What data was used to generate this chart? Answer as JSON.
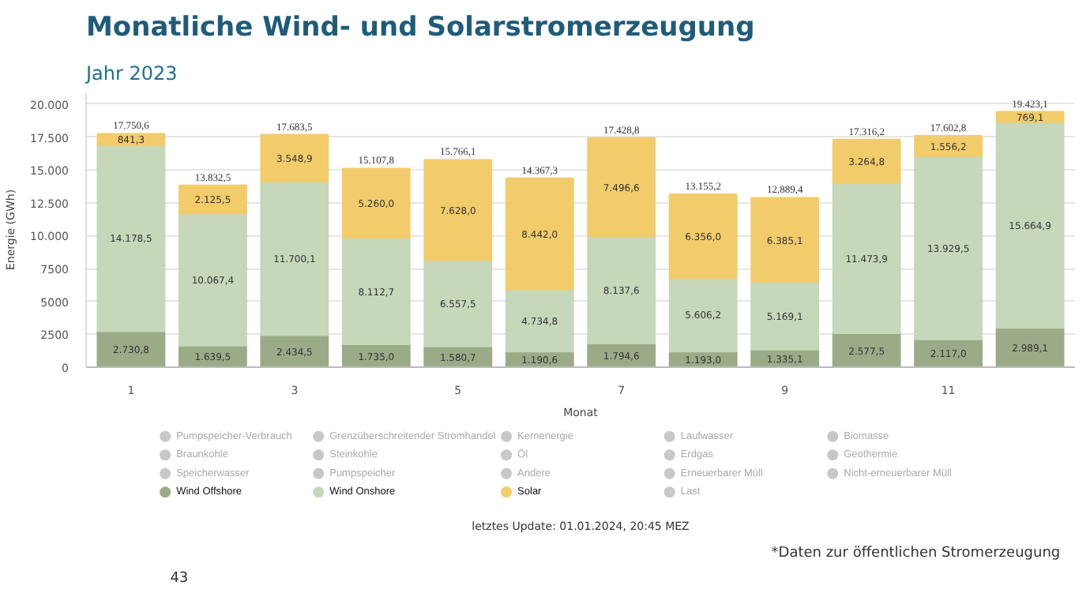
{
  "chart_data": {
    "type": "bar",
    "stacked": true,
    "title": "Monatliche Wind- und Solarstromerzeugung",
    "subtitle": "Jahr 2023",
    "xlabel": "Monat",
    "ylabel": "Energie (GWh)",
    "categories": [
      "1",
      null,
      "3",
      null,
      "5",
      null,
      "7",
      null,
      "9",
      null,
      "11",
      null
    ],
    "ylim": [
      0,
      20900
    ],
    "yticks": [
      0,
      2500,
      5000,
      7500,
      {
        "value": 10000,
        "label": "10.000"
      },
      {
        "value": 12500,
        "label": "12.500"
      },
      {
        "value": 15000,
        "label": "15.000"
      },
      {
        "value": 17500,
        "label": "17.500"
      },
      {
        "value": 20000,
        "label": "20.000"
      }
    ],
    "grid": "y",
    "legend": "bottom",
    "series": [
      {
        "name": "Pumpspeicher-Verbrauch",
        "color": "#c8c8c8",
        "values": [
          null,
          null,
          null,
          null,
          null,
          null,
          null,
          null,
          null,
          null,
          null,
          null
        ]
      },
      {
        "name": "Braunkohle",
        "color": "#c8c8c8",
        "values": [
          null,
          null,
          null,
          null,
          null,
          null,
          null,
          null,
          null,
          null,
          null,
          null
        ]
      },
      {
        "name": "Speicherwasser",
        "color": "#c8c8c8",
        "values": [
          null,
          null,
          null,
          null,
          null,
          null,
          null,
          null,
          null,
          null,
          null,
          null
        ]
      },
      {
        "name": "Wind Offshore",
        "color": "#9bab88",
        "values": [
          2730.8,
          1639.5,
          2434.5,
          1735.0,
          1580.7,
          1190.6,
          1794.6,
          1193.0,
          1335.1,
          2577.5,
          2117.0,
          2989.1
        ],
        "value_labels": [
          "2.730,8",
          "1.639,5",
          "2.434,5",
          "1.735,0",
          "1.580,7",
          "1.190,6",
          "1.794,6",
          "1.193,0",
          "1.335,1",
          "2.577,5",
          "2.117,0",
          "2.989,1"
        ]
      },
      {
        "name": "Grenzüberschreitender Stromhandel",
        "color": "#c8c8c8",
        "values": [
          null,
          null,
          null,
          null,
          null,
          null,
          null,
          null,
          null,
          null,
          null,
          null
        ]
      },
      {
        "name": "Steinkohle",
        "color": "#c8c8c8",
        "values": [
          null,
          null,
          null,
          null,
          null,
          null,
          null,
          null,
          null,
          null,
          null,
          null
        ]
      },
      {
        "name": "Pumpspeicher",
        "color": "#c8c8c8",
        "values": [
          null,
          null,
          null,
          null,
          null,
          null,
          null,
          null,
          null,
          null,
          null,
          null
        ]
      },
      {
        "name": "Wind Onshore",
        "color": "#c6d7ba",
        "values": [
          14178.5,
          10067.4,
          11700.1,
          8112.7,
          6557.5,
          4734.8,
          8137.6,
          5606.2,
          5169.1,
          11473.9,
          13929.5,
          15664.9
        ],
        "value_labels": [
          "14.178,5",
          "10.067,4",
          "11.700,1",
          "8.112,7",
          "6.557,5",
          "4.734,8",
          "8.137,6",
          "5.606,2",
          "5.169,1",
          "11.473,9",
          "13.929,5",
          "15.664,9"
        ]
      },
      {
        "name": "Kernenergie",
        "color": "#c8c8c8",
        "values": [
          null,
          null,
          null,
          null,
          null,
          null,
          null,
          null,
          null,
          null,
          null,
          null
        ]
      },
      {
        "name": "Öl",
        "color": "#c8c8c8",
        "values": [
          null,
          null,
          null,
          null,
          null,
          null,
          null,
          null,
          null,
          null,
          null,
          null
        ]
      },
      {
        "name": "Andere",
        "color": "#c8c8c8",
        "values": [
          null,
          null,
          null,
          null,
          null,
          null,
          null,
          null,
          null,
          null,
          null,
          null
        ]
      },
      {
        "name": "Solar",
        "color": "#f2cc6b",
        "values": [
          841.3,
          2125.5,
          3548.9,
          5260.0,
          7628.0,
          8442.0,
          7496.6,
          6356.0,
          6385.1,
          3264.8,
          1556.2,
          769.1
        ],
        "value_labels": [
          "841,3",
          "2.125,5",
          "3.548,9",
          "5.260,0",
          "7.628,0",
          "8.442,0",
          "7.496,6",
          "6.356,0",
          "6.385,1",
          "3.264,8",
          "1.556,2",
          "769,1"
        ]
      },
      {
        "name": "Laufwasser",
        "color": "#c8c8c8",
        "values": [
          null,
          null,
          null,
          null,
          null,
          null,
          null,
          null,
          null,
          null,
          null,
          null
        ]
      },
      {
        "name": "Erdgas",
        "color": "#c8c8c8",
        "values": [
          null,
          null,
          null,
          null,
          null,
          null,
          null,
          null,
          null,
          null,
          null,
          null
        ]
      },
      {
        "name": "Erneuerbarer Müll",
        "color": "#c8c8c8",
        "values": [
          null,
          null,
          null,
          null,
          null,
          null,
          null,
          null,
          null,
          null,
          null,
          null
        ]
      },
      {
        "name": "Last",
        "color": "#c8c8c8",
        "values": [
          null,
          null,
          null,
          null,
          null,
          null,
          null,
          null,
          null,
          null,
          null,
          null
        ]
      },
      {
        "name": "Biomasse",
        "color": "#c8c8c8",
        "values": [
          null,
          null,
          null,
          null,
          null,
          null,
          null,
          null,
          null,
          null,
          null,
          null
        ]
      },
      {
        "name": "Geothermie",
        "color": "#c8c8c8",
        "values": [
          null,
          null,
          null,
          null,
          null,
          null,
          null,
          null,
          null,
          null,
          null,
          null
        ]
      },
      {
        "name": "Nicht-erneuerbarer Müll",
        "color": "#c8c8c8",
        "values": [
          null,
          null,
          null,
          null,
          null,
          null,
          null,
          null,
          null,
          null,
          null,
          null
        ]
      }
    ],
    "totals": [
      "17.750,6",
      "13.832,5",
      "17.683,5",
      "15.107,8",
      "15.766,1",
      "14.367,3",
      "17.428,8",
      "13.155,2",
      "12.889,4",
      "17.316,2",
      "17.602,8",
      "19.423,1"
    ],
    "annotations": [
      "letztes Update: 01.01.2024, 20:45 MEZ",
      "*Daten zur öffentlichen Stromerzeugung",
      "43"
    ]
  }
}
